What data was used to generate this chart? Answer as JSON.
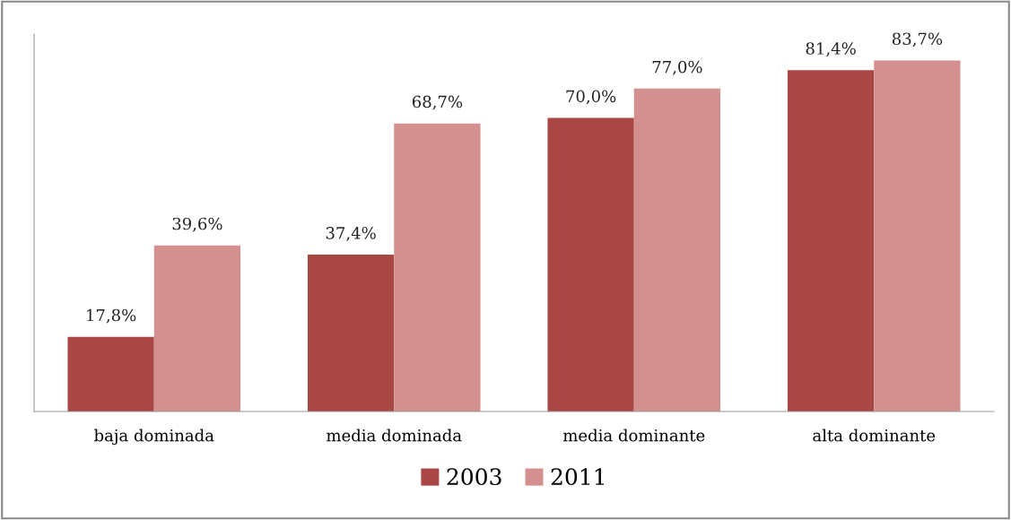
{
  "chart_data": {
    "type": "bar",
    "categories": [
      "baja dominada",
      "media dominada",
      "media dominante",
      "alta dominante"
    ],
    "series": [
      {
        "name": "2003",
        "color": "#a84744",
        "values": [
          17.8,
          37.4,
          70.0,
          81.4
        ],
        "value_labels": [
          "17,8%",
          "37,4%",
          "70,0%",
          "81,4%"
        ]
      },
      {
        "name": "2011",
        "color": "#d4908e",
        "values": [
          39.6,
          68.7,
          77.0,
          83.7
        ],
        "value_labels": [
          "39,6%",
          "68,7%",
          "77,0%",
          "83,7%"
        ]
      }
    ],
    "ylim": [
      0,
      90
    ],
    "tick_labels": "x",
    "grid": false,
    "legend": "bottom"
  }
}
